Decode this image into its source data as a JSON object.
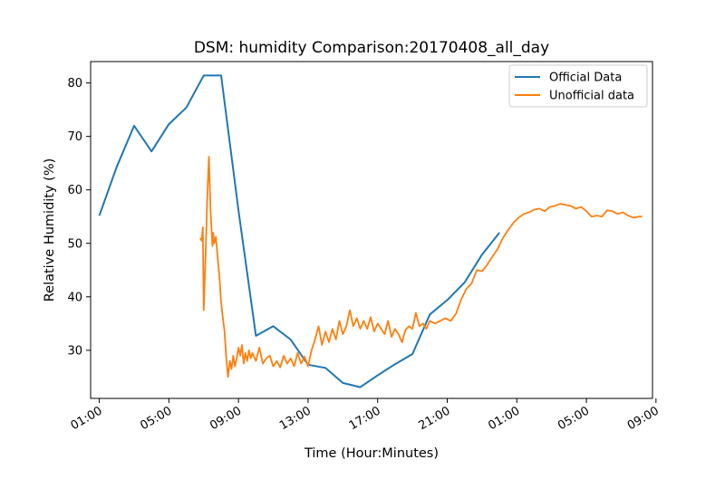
{
  "chart_data": {
    "type": "line",
    "title": "DSM: humidity Comparison:20170408_all_day",
    "xlabel": "Time (Hour:Minutes)",
    "ylabel": "Relative Humidity (%)",
    "xlim": [
      -0.5,
      31.8
    ],
    "ylim": [
      21.0,
      84.0
    ],
    "x_ticks": [
      {
        "value": 0,
        "label": "01:00"
      },
      {
        "value": 4,
        "label": "05:00"
      },
      {
        "value": 8,
        "label": "09:00"
      },
      {
        "value": 12,
        "label": "13:00"
      },
      {
        "value": 16,
        "label": "17:00"
      },
      {
        "value": 20,
        "label": "21:00"
      },
      {
        "value": 24,
        "label": "01:00"
      },
      {
        "value": 28,
        "label": "05:00"
      },
      {
        "value": 32,
        "label": "09:00"
      }
    ],
    "y_ticks": [
      30,
      40,
      50,
      60,
      70,
      80
    ],
    "legend_position": "top-right",
    "series": [
      {
        "name": "Official Data",
        "color": "#1f77b4",
        "x": [
          0,
          1,
          2,
          3,
          4,
          5,
          6,
          7,
          8,
          9,
          10,
          11,
          12,
          13,
          14,
          15,
          16,
          17,
          18,
          19,
          20,
          21,
          22,
          23
        ],
        "y": [
          55.2,
          64.3,
          72.0,
          67.2,
          72.3,
          75.4,
          81.4,
          81.4,
          56.1,
          32.7,
          34.5,
          32.0,
          27.3,
          26.7,
          23.9,
          23.1,
          25.3,
          27.4,
          29.3,
          36.7,
          39.4,
          42.7,
          47.9,
          52.0
        ]
      },
      {
        "name": "Unofficial data",
        "color": "#ff7f0e",
        "x": [
          5.8,
          5.88,
          5.95,
          6.0,
          6.05,
          6.1,
          6.15,
          6.2,
          6.3,
          6.4,
          6.5,
          6.55,
          6.6,
          6.7,
          6.8,
          6.9,
          7.0,
          7.1,
          7.2,
          7.3,
          7.4,
          7.5,
          7.6,
          7.7,
          7.8,
          7.9,
          8.0,
          8.1,
          8.2,
          8.3,
          8.4,
          8.5,
          8.6,
          8.7,
          8.8,
          9.0,
          9.2,
          9.4,
          9.6,
          9.8,
          10.0,
          10.2,
          10.4,
          10.6,
          10.8,
          11.0,
          11.2,
          11.4,
          11.6,
          11.8,
          12.0,
          12.2,
          12.4,
          12.6,
          12.8,
          13.0,
          13.2,
          13.4,
          13.6,
          13.8,
          14.0,
          14.2,
          14.4,
          14.6,
          14.8,
          15.0,
          15.2,
          15.4,
          15.6,
          15.8,
          16.0,
          16.2,
          16.4,
          16.6,
          16.8,
          17.0,
          17.2,
          17.4,
          17.6,
          17.8,
          18.0,
          18.2,
          18.4,
          18.6,
          18.8,
          19.0,
          19.3,
          19.6,
          19.9,
          20.2,
          20.5,
          20.8,
          21.1,
          21.4,
          21.7,
          22.0,
          22.3,
          22.6,
          22.9,
          23.2,
          23.5,
          23.8,
          24.1,
          24.4,
          24.7,
          25.0,
          25.3,
          25.6,
          25.9,
          26.2,
          26.5,
          26.8,
          27.1,
          27.4,
          27.7,
          28.0,
          28.3,
          28.6,
          28.9,
          29.2,
          29.5,
          29.8,
          30.1,
          30.4,
          30.7,
          31.0,
          31.2
        ],
        "y": [
          51.0,
          50.5,
          53.0,
          37.5,
          42.0,
          47.0,
          52.0,
          58.0,
          66.2,
          56.0,
          49.5,
          52.0,
          50.0,
          51.2,
          47.5,
          44.0,
          39.0,
          36.0,
          33.5,
          28.5,
          25.0,
          28.0,
          26.5,
          29.0,
          27.0,
          28.5,
          30.5,
          29.0,
          31.0,
          27.5,
          29.5,
          28.0,
          30.0,
          28.5,
          29.5,
          28.0,
          30.5,
          27.5,
          28.5,
          29.0,
          27.0,
          28.0,
          26.8,
          29.0,
          27.5,
          28.5,
          27.0,
          29.5,
          27.5,
          28.8,
          27.0,
          30.0,
          32.0,
          34.5,
          31.0,
          33.5,
          31.5,
          34.0,
          32.0,
          35.5,
          33.0,
          34.5,
          37.5,
          34.5,
          36.0,
          34.0,
          35.5,
          34.0,
          36.2,
          33.5,
          35.0,
          34.0,
          33.0,
          35.5,
          32.5,
          34.0,
          33.0,
          31.5,
          33.8,
          34.5,
          34.0,
          37.0,
          34.5,
          35.0,
          34.0,
          35.5,
          35.0,
          35.5,
          36.0,
          35.5,
          36.8,
          39.5,
          41.5,
          42.5,
          45.0,
          44.8,
          46.0,
          47.5,
          49.0,
          51.0,
          52.5,
          53.8,
          54.8,
          55.5,
          55.8,
          56.3,
          56.5,
          56.0,
          56.8,
          57.0,
          57.4,
          57.2,
          57.0,
          56.5,
          56.8,
          56.0,
          55.0,
          55.2,
          55.0,
          56.2,
          56.0,
          55.5,
          55.8,
          55.2,
          54.8,
          55.0,
          55.0
        ]
      }
    ]
  }
}
